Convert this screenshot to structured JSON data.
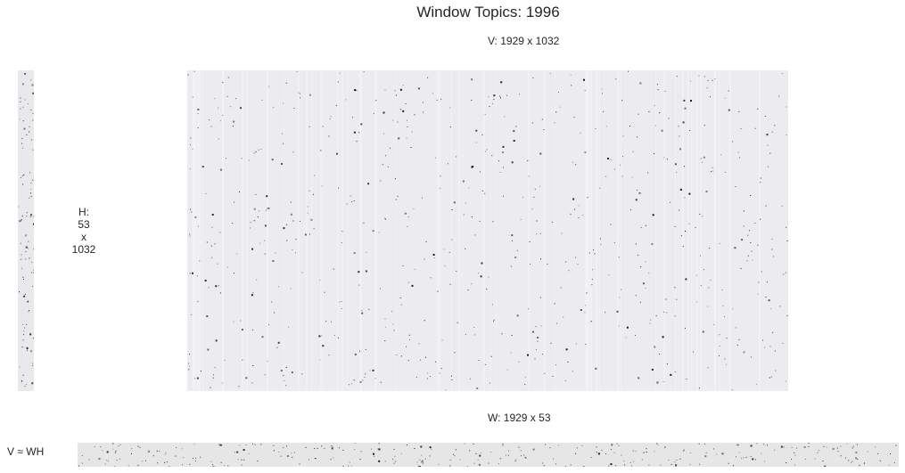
{
  "chart_data": {
    "type": "heatmap",
    "title": "Window Topics: 1996",
    "panels": [
      {
        "id": "H",
        "label": "H:\n53\nx\n1032",
        "rows": 53,
        "cols": 1032,
        "base_color": "#e9e9eb",
        "dot_color": "#111111",
        "density": 0.06
      },
      {
        "id": "V",
        "label": "V: 1929 x 1032",
        "rows": 1929,
        "cols": 1032,
        "base_color": "#ebebf0",
        "dot_color": "#111111",
        "density": 0.012
      },
      {
        "id": "W",
        "label": "W: 1929 x 53",
        "rows": 1929,
        "cols": 53,
        "base_color": "#e6e6e6",
        "dot_color": "#111111",
        "density": 0.05
      }
    ],
    "equation": "V ≈ WH"
  }
}
